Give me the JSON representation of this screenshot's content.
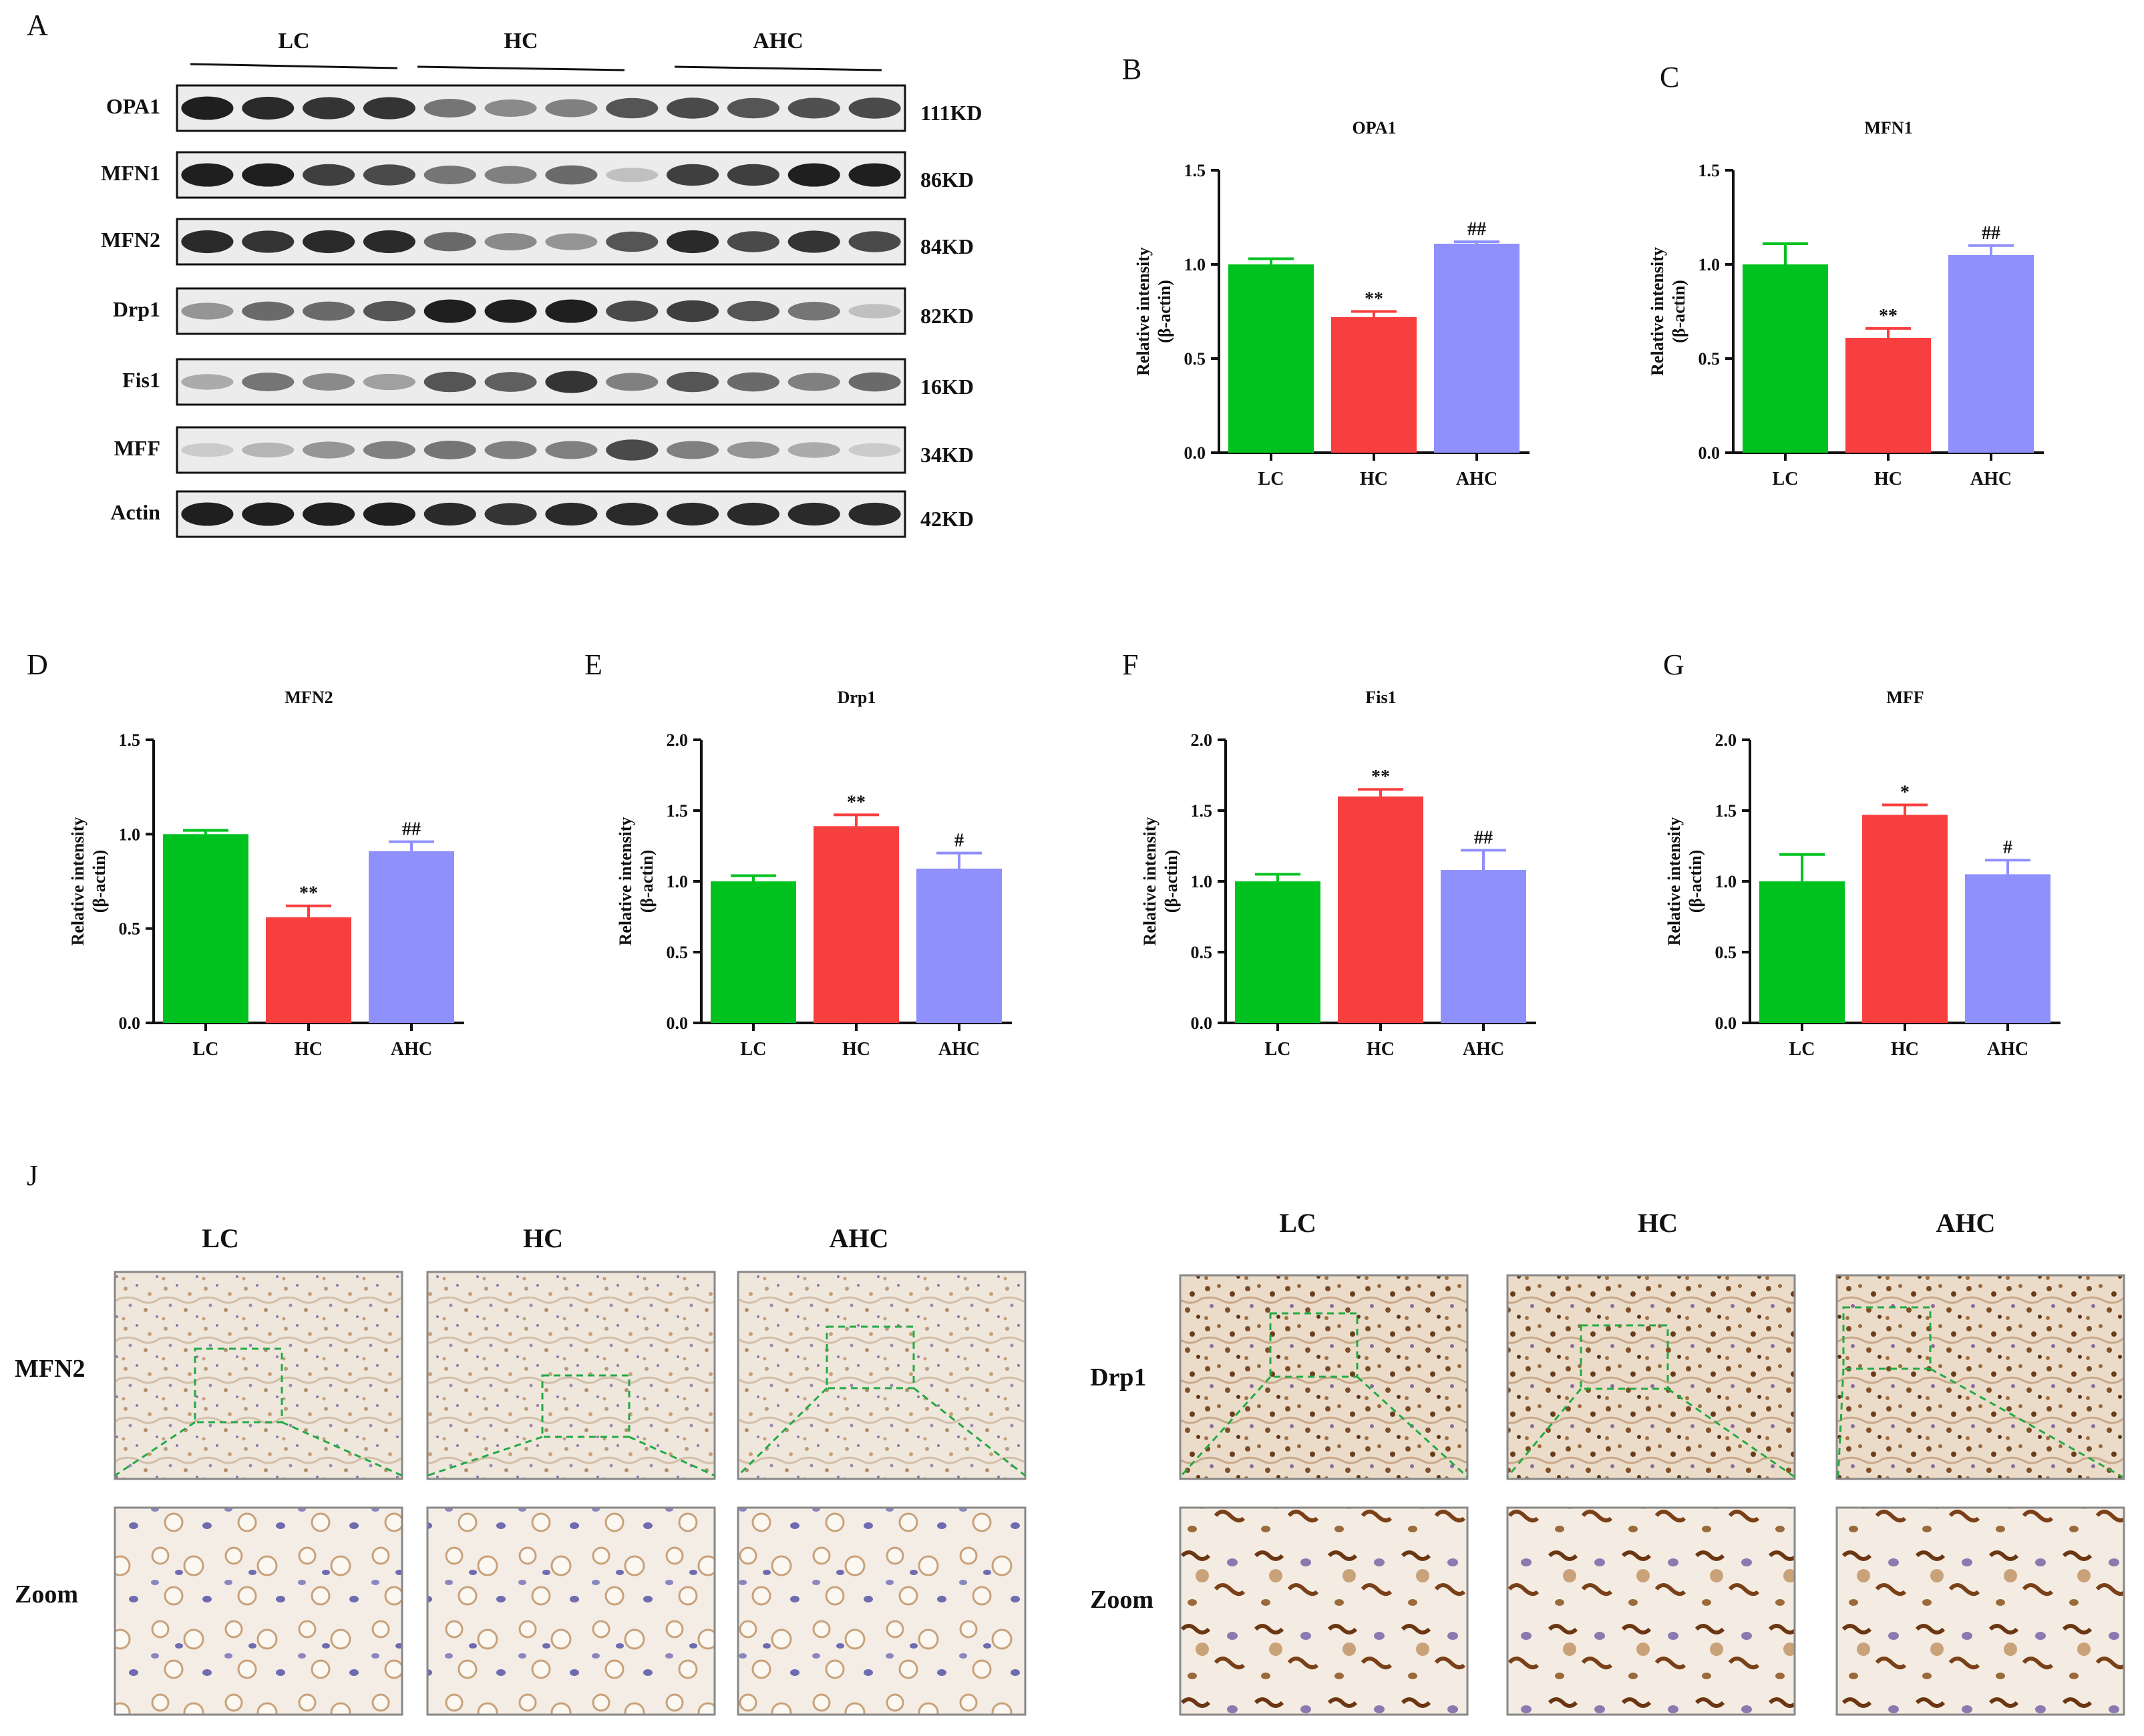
{
  "panels": {
    "A": "A",
    "B": "B",
    "C": "C",
    "D": "D",
    "E": "E",
    "F": "F",
    "G": "G",
    "J": "J"
  },
  "blot": {
    "groups": [
      "LC",
      "HC",
      "AHC"
    ],
    "lanes_per_group": 4,
    "proteins": [
      {
        "name": "OPA1",
        "size": "111KD",
        "intensity": [
          0.95,
          0.9,
          0.85,
          0.85,
          0.55,
          0.45,
          0.5,
          0.7,
          0.75,
          0.7,
          0.72,
          0.75
        ]
      },
      {
        "name": "MFN1",
        "size": "86KD",
        "intensity": [
          0.95,
          0.95,
          0.8,
          0.75,
          0.55,
          0.5,
          0.6,
          0.2,
          0.8,
          0.8,
          0.95,
          0.95
        ]
      },
      {
        "name": "MFN2",
        "size": "84KD",
        "intensity": [
          0.9,
          0.85,
          0.9,
          0.9,
          0.6,
          0.45,
          0.4,
          0.7,
          0.9,
          0.75,
          0.85,
          0.75
        ]
      },
      {
        "name": "Drp1",
        "size": "82KD",
        "intensity": [
          0.4,
          0.6,
          0.6,
          0.7,
          0.95,
          0.95,
          0.95,
          0.75,
          0.8,
          0.7,
          0.55,
          0.2
        ]
      },
      {
        "name": "Fis1",
        "size": "16KD",
        "intensity": [
          0.3,
          0.55,
          0.45,
          0.35,
          0.7,
          0.65,
          0.85,
          0.5,
          0.7,
          0.6,
          0.5,
          0.6
        ]
      },
      {
        "name": "MFF",
        "size": "34KD",
        "intensity": [
          0.15,
          0.25,
          0.4,
          0.5,
          0.55,
          0.5,
          0.5,
          0.75,
          0.5,
          0.4,
          0.3,
          0.15
        ]
      },
      {
        "name": "Actin",
        "size": "42KD",
        "intensity": [
          0.95,
          0.95,
          0.95,
          0.95,
          0.9,
          0.85,
          0.9,
          0.9,
          0.9,
          0.9,
          0.9,
          0.9
        ]
      }
    ]
  },
  "chart_data": [
    {
      "type": "bar",
      "title": "OPA1",
      "ylabel": "Relative intensity (β-actin)",
      "categories": [
        "LC",
        "HC",
        "AHC"
      ],
      "values": [
        1.0,
        0.72,
        1.11
      ],
      "errors": [
        0.03,
        0.03,
        0.01
      ],
      "annotations": [
        "",
        "**",
        "##"
      ],
      "ylim": [
        0,
        1.5
      ],
      "yticks": [
        "0.0",
        "0.5",
        "1.0",
        "1.5"
      ]
    },
    {
      "type": "bar",
      "title": "MFN1",
      "ylabel": "Relative intensity (β-actin)",
      "categories": [
        "LC",
        "HC",
        "AHC"
      ],
      "values": [
        1.0,
        0.61,
        1.05
      ],
      "errors": [
        0.11,
        0.05,
        0.05
      ],
      "annotations": [
        "",
        "**",
        "##"
      ],
      "ylim": [
        0,
        1.5
      ],
      "yticks": [
        "0.0",
        "0.5",
        "1.0",
        "1.5"
      ]
    },
    {
      "type": "bar",
      "title": "MFN2",
      "ylabel": "Relative intensity (β-actin)",
      "categories": [
        "LC",
        "HC",
        "AHC"
      ],
      "values": [
        1.0,
        0.56,
        0.91
      ],
      "errors": [
        0.02,
        0.06,
        0.05
      ],
      "annotations": [
        "",
        "**",
        "##"
      ],
      "ylim": [
        0,
        1.5
      ],
      "yticks": [
        "0.0",
        "0.5",
        "1.0",
        "1.5"
      ]
    },
    {
      "type": "bar",
      "title": "Drp1",
      "ylabel": "Relative intensity (β-actin)",
      "categories": [
        "LC",
        "HC",
        "AHC"
      ],
      "values": [
        1.0,
        1.39,
        1.09
      ],
      "errors": [
        0.04,
        0.08,
        0.11
      ],
      "annotations": [
        "",
        "**",
        "#"
      ],
      "ylim": [
        0,
        2.0
      ],
      "yticks": [
        "0.0",
        "0.5",
        "1.0",
        "1.5",
        "2.0"
      ]
    },
    {
      "type": "bar",
      "title": "Fis1",
      "ylabel": "Relative intensity (β-actin)",
      "categories": [
        "LC",
        "HC",
        "AHC"
      ],
      "values": [
        1.0,
        1.6,
        1.08
      ],
      "errors": [
        0.05,
        0.05,
        0.14
      ],
      "annotations": [
        "",
        "**",
        "##"
      ],
      "ylim": [
        0,
        2.0
      ],
      "yticks": [
        "0.0",
        "0.5",
        "1.0",
        "1.5",
        "2.0"
      ]
    },
    {
      "type": "bar",
      "title": "MFF",
      "ylabel": "Relative intensity (β-actin)",
      "categories": [
        "LC",
        "HC",
        "AHC"
      ],
      "values": [
        1.0,
        1.47,
        1.05
      ],
      "errors": [
        0.19,
        0.07,
        0.1
      ],
      "annotations": [
        "",
        "*",
        "#"
      ],
      "ylim": [
        0,
        2.0
      ],
      "yticks": [
        "0.0",
        "0.5",
        "1.0",
        "1.5",
        "2.0"
      ]
    }
  ],
  "colors": {
    "LC": "#00c21f",
    "HC": "#f83f40",
    "AHC": "#8f90fb"
  },
  "ihc": {
    "mfn2_row_label": "MFN2",
    "drp1_row_label": "Drp1",
    "zoom_label": "Zoom",
    "columns": [
      "LC",
      "HC",
      "AHC"
    ]
  }
}
